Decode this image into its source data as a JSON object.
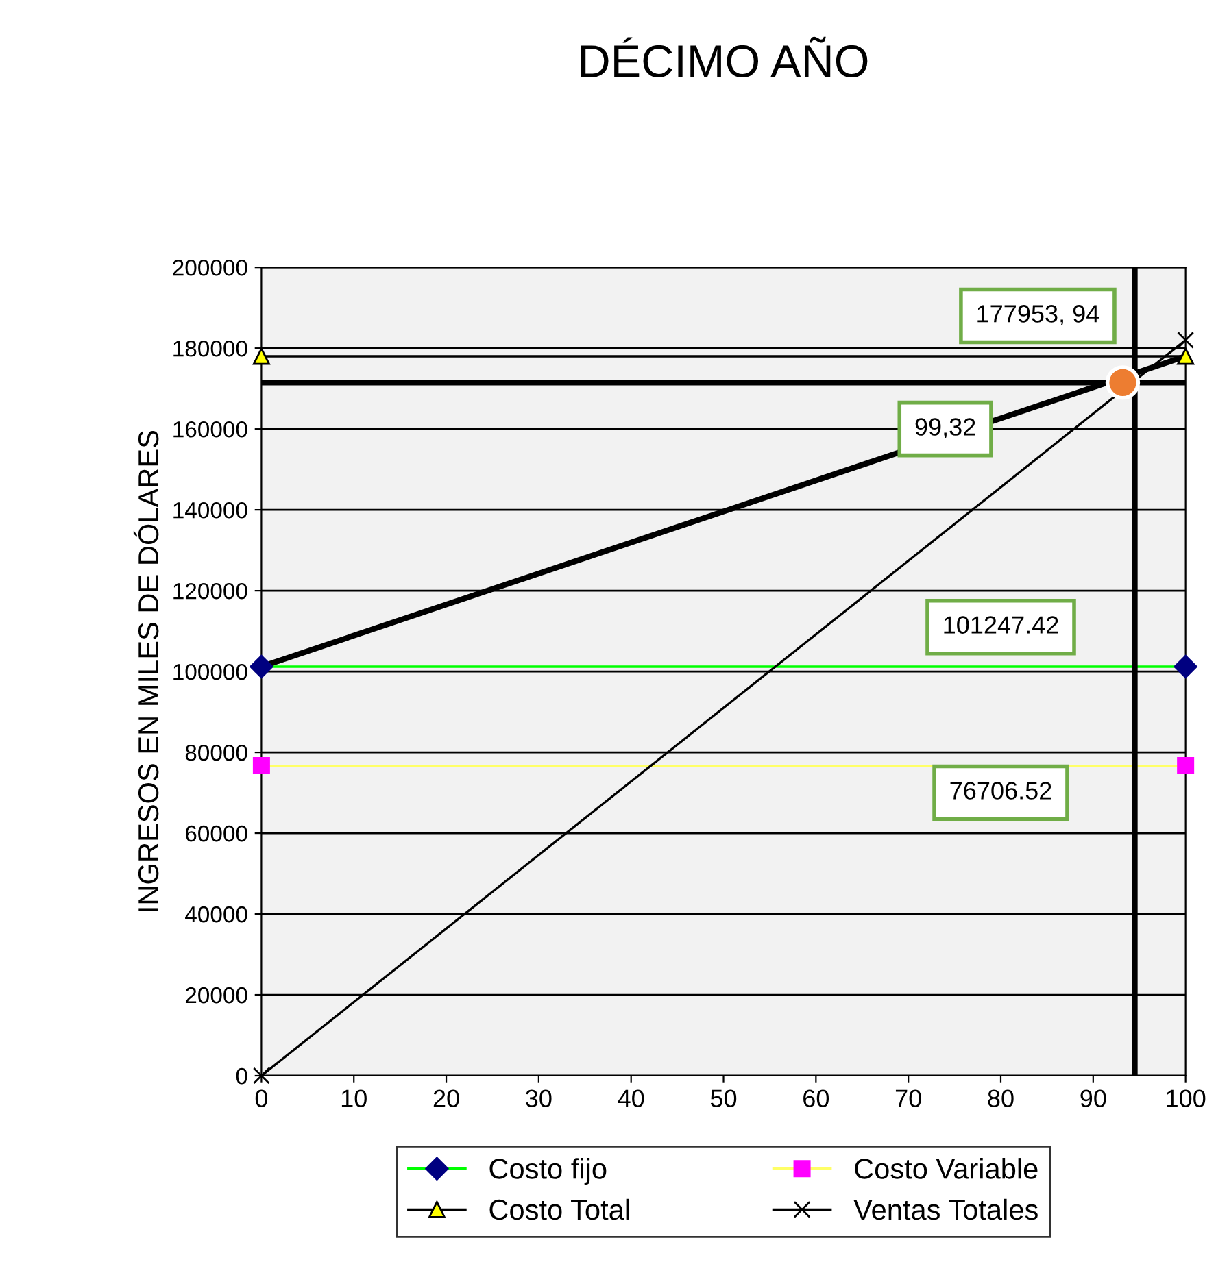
{
  "chart_data": {
    "type": "line",
    "title": "DÉCIMO AÑO",
    "ylabel": "INGRESOS EN MILES DE DÓLARES",
    "x": [
      0,
      100
    ],
    "xlim": [
      0,
      100
    ],
    "xticks": [
      0,
      10,
      20,
      30,
      40,
      50,
      60,
      70,
      80,
      90,
      100
    ],
    "ylim": [
      0,
      200000
    ],
    "yticks": [
      0,
      20000,
      40000,
      60000,
      80000,
      100000,
      120000,
      140000,
      160000,
      180000,
      200000
    ],
    "grid": "y",
    "legend": "bottom",
    "series": [
      {
        "name": "Costo fijo",
        "color": "#00ff00",
        "colors": [
          "#000080",
          "#000080"
        ],
        "marker": "diamond",
        "values": [
          101200,
          101200
        ]
      },
      {
        "name": "Costo Variable",
        "color": "#ffff66",
        "colors": [
          "#ff00ff",
          "#ff00ff"
        ],
        "marker": "square",
        "values": [
          76700,
          76700
        ]
      },
      {
        "name": "Costo Total",
        "color": "#000000",
        "colors": [
          "#ffff00",
          "#ffff00"
        ],
        "marker": "triangle",
        "values": [
          178000,
          178000
        ]
      },
      {
        "name": "Ventas Totales",
        "color": "#000000",
        "colors": [
          "#000000",
          "#000000"
        ],
        "marker": "cross",
        "values": [
          0,
          182000
        ]
      },
      {
        "color": "#000000",
        "marker": "none",
        "values": [
          101200,
          178000
        ]
      },
      {
        "type": "scatter",
        "color": "#ed7d31",
        "marker": "circle",
        "x": [
          93.2
        ],
        "values": [
          171500
        ]
      }
    ],
    "ref_lines": [
      {
        "axis": "y",
        "value": 171500,
        "color": "#000000"
      },
      {
        "axis": "x",
        "value": 94.5,
        "color": "#000000"
      }
    ],
    "annotations": [
      "177953, 94",
      "99,32",
      "101247.42",
      "76706.52"
    ]
  }
}
